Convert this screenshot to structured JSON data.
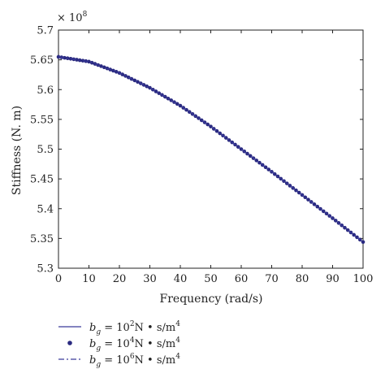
{
  "chart_data": {
    "type": "line",
    "xlabel": "Frequency (rad/s)",
    "ylabel": "Stiffness (N. m)",
    "y_multiplier": "× 10",
    "y_multiplier_exp": "8",
    "xlim": [
      0,
      100
    ],
    "ylim": [
      5.3,
      5.7
    ],
    "grid": false,
    "legend_position": "below",
    "x_ticks": [
      "0",
      "10",
      "20",
      "30",
      "40",
      "50",
      "60",
      "70",
      "80",
      "90",
      "100"
    ],
    "y_ticks": [
      "5.3",
      "5.35",
      "5.4",
      "5.45",
      "5.5",
      "5.55",
      "5.6",
      "5.65",
      "5.7"
    ],
    "x": [
      0,
      10,
      20,
      30,
      40,
      50,
      60,
      70,
      80,
      90,
      100
    ],
    "series": [
      {
        "name": "b_g = 10^2 N • s/m^4",
        "legend_base": "= 10",
        "legend_exp": "2",
        "legend_unit": "N • s/m",
        "legend_unit_exp": "4",
        "style": "solid",
        "color": "#3a3a9a",
        "values": [
          5.655,
          5.647,
          5.628,
          5.603,
          5.573,
          5.538,
          5.5,
          5.462,
          5.423,
          5.384,
          5.344
        ]
      },
      {
        "name": "b_g = 10^4 N • s/m^4",
        "legend_base": "= 10",
        "legend_exp": "4",
        "legend_unit": "N • s/m",
        "legend_unit_exp": "4",
        "style": "dots",
        "color": "#2a2a80",
        "values": [
          5.655,
          5.647,
          5.628,
          5.603,
          5.573,
          5.538,
          5.5,
          5.462,
          5.423,
          5.384,
          5.344
        ]
      },
      {
        "name": "b_g = 10^6 N • s/m^4",
        "legend_base": "= 10",
        "legend_exp": "6",
        "legend_unit": "N • s/m",
        "legend_unit_exp": "4",
        "style": "dashdot",
        "color": "#3a3a9a",
        "values": [
          5.655,
          5.647,
          5.628,
          5.603,
          5.573,
          5.538,
          5.5,
          5.462,
          5.423,
          5.384,
          5.344
        ]
      }
    ]
  }
}
